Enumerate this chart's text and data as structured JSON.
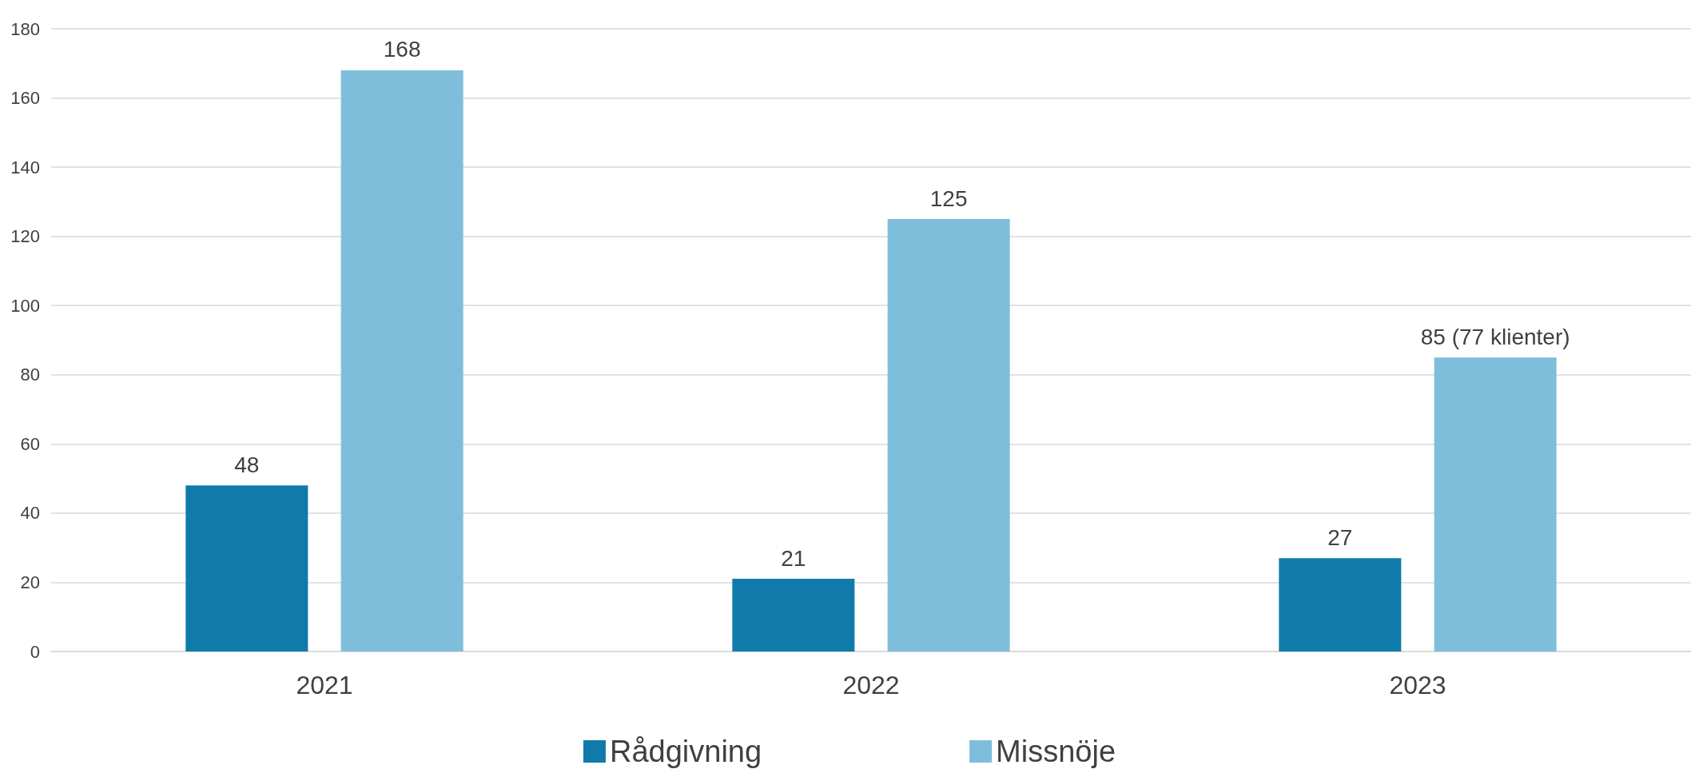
{
  "chart_data": {
    "type": "bar",
    "categories": [
      "2021",
      "2022",
      "2023"
    ],
    "series": [
      {
        "name": "Rådgivning",
        "color": "#107bab",
        "values": [
          48,
          21,
          27
        ],
        "value_labels": [
          "48",
          "21",
          "27"
        ]
      },
      {
        "name": "Missnöje",
        "color": "#7fbedb",
        "values": [
          168,
          125,
          85
        ],
        "value_labels": [
          "168",
          "125",
          "85 (77 klienter)"
        ]
      }
    ],
    "ylim": [
      0,
      180
    ],
    "yticks": [
      0,
      20,
      40,
      60,
      80,
      100,
      120,
      140,
      160,
      180
    ],
    "grid": "y",
    "legend": "bottom"
  }
}
